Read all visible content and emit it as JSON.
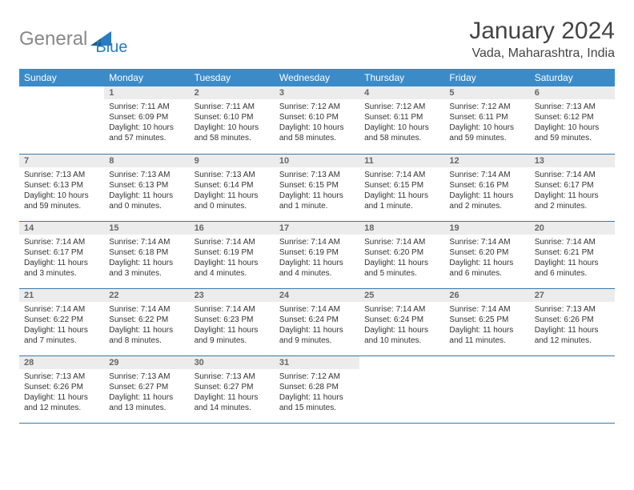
{
  "colors": {
    "header_bg": "#3b8bc9",
    "divider": "#3b77a8",
    "daynum_bg": "#ececec",
    "logo_blue": "#2b7bbf",
    "logo_gray": "#888888"
  },
  "logo": {
    "part1": "General",
    "part2": "Blue"
  },
  "title": "January 2024",
  "location": "Vada, Maharashtra, India",
  "weekdays": [
    "Sunday",
    "Monday",
    "Tuesday",
    "Wednesday",
    "Thursday",
    "Friday",
    "Saturday"
  ],
  "weeks": [
    [
      {
        "n": "",
        "sunrise": "",
        "sunset": "",
        "daylight": ""
      },
      {
        "n": "1",
        "sunrise": "Sunrise: 7:11 AM",
        "sunset": "Sunset: 6:09 PM",
        "daylight": "Daylight: 10 hours and 57 minutes."
      },
      {
        "n": "2",
        "sunrise": "Sunrise: 7:11 AM",
        "sunset": "Sunset: 6:10 PM",
        "daylight": "Daylight: 10 hours and 58 minutes."
      },
      {
        "n": "3",
        "sunrise": "Sunrise: 7:12 AM",
        "sunset": "Sunset: 6:10 PM",
        "daylight": "Daylight: 10 hours and 58 minutes."
      },
      {
        "n": "4",
        "sunrise": "Sunrise: 7:12 AM",
        "sunset": "Sunset: 6:11 PM",
        "daylight": "Daylight: 10 hours and 58 minutes."
      },
      {
        "n": "5",
        "sunrise": "Sunrise: 7:12 AM",
        "sunset": "Sunset: 6:11 PM",
        "daylight": "Daylight: 10 hours and 59 minutes."
      },
      {
        "n": "6",
        "sunrise": "Sunrise: 7:13 AM",
        "sunset": "Sunset: 6:12 PM",
        "daylight": "Daylight: 10 hours and 59 minutes."
      }
    ],
    [
      {
        "n": "7",
        "sunrise": "Sunrise: 7:13 AM",
        "sunset": "Sunset: 6:13 PM",
        "daylight": "Daylight: 10 hours and 59 minutes."
      },
      {
        "n": "8",
        "sunrise": "Sunrise: 7:13 AM",
        "sunset": "Sunset: 6:13 PM",
        "daylight": "Daylight: 11 hours and 0 minutes."
      },
      {
        "n": "9",
        "sunrise": "Sunrise: 7:13 AM",
        "sunset": "Sunset: 6:14 PM",
        "daylight": "Daylight: 11 hours and 0 minutes."
      },
      {
        "n": "10",
        "sunrise": "Sunrise: 7:13 AM",
        "sunset": "Sunset: 6:15 PM",
        "daylight": "Daylight: 11 hours and 1 minute."
      },
      {
        "n": "11",
        "sunrise": "Sunrise: 7:14 AM",
        "sunset": "Sunset: 6:15 PM",
        "daylight": "Daylight: 11 hours and 1 minute."
      },
      {
        "n": "12",
        "sunrise": "Sunrise: 7:14 AM",
        "sunset": "Sunset: 6:16 PM",
        "daylight": "Daylight: 11 hours and 2 minutes."
      },
      {
        "n": "13",
        "sunrise": "Sunrise: 7:14 AM",
        "sunset": "Sunset: 6:17 PM",
        "daylight": "Daylight: 11 hours and 2 minutes."
      }
    ],
    [
      {
        "n": "14",
        "sunrise": "Sunrise: 7:14 AM",
        "sunset": "Sunset: 6:17 PM",
        "daylight": "Daylight: 11 hours and 3 minutes."
      },
      {
        "n": "15",
        "sunrise": "Sunrise: 7:14 AM",
        "sunset": "Sunset: 6:18 PM",
        "daylight": "Daylight: 11 hours and 3 minutes."
      },
      {
        "n": "16",
        "sunrise": "Sunrise: 7:14 AM",
        "sunset": "Sunset: 6:19 PM",
        "daylight": "Daylight: 11 hours and 4 minutes."
      },
      {
        "n": "17",
        "sunrise": "Sunrise: 7:14 AM",
        "sunset": "Sunset: 6:19 PM",
        "daylight": "Daylight: 11 hours and 4 minutes."
      },
      {
        "n": "18",
        "sunrise": "Sunrise: 7:14 AM",
        "sunset": "Sunset: 6:20 PM",
        "daylight": "Daylight: 11 hours and 5 minutes."
      },
      {
        "n": "19",
        "sunrise": "Sunrise: 7:14 AM",
        "sunset": "Sunset: 6:20 PM",
        "daylight": "Daylight: 11 hours and 6 minutes."
      },
      {
        "n": "20",
        "sunrise": "Sunrise: 7:14 AM",
        "sunset": "Sunset: 6:21 PM",
        "daylight": "Daylight: 11 hours and 6 minutes."
      }
    ],
    [
      {
        "n": "21",
        "sunrise": "Sunrise: 7:14 AM",
        "sunset": "Sunset: 6:22 PM",
        "daylight": "Daylight: 11 hours and 7 minutes."
      },
      {
        "n": "22",
        "sunrise": "Sunrise: 7:14 AM",
        "sunset": "Sunset: 6:22 PM",
        "daylight": "Daylight: 11 hours and 8 minutes."
      },
      {
        "n": "23",
        "sunrise": "Sunrise: 7:14 AM",
        "sunset": "Sunset: 6:23 PM",
        "daylight": "Daylight: 11 hours and 9 minutes."
      },
      {
        "n": "24",
        "sunrise": "Sunrise: 7:14 AM",
        "sunset": "Sunset: 6:24 PM",
        "daylight": "Daylight: 11 hours and 9 minutes."
      },
      {
        "n": "25",
        "sunrise": "Sunrise: 7:14 AM",
        "sunset": "Sunset: 6:24 PM",
        "daylight": "Daylight: 11 hours and 10 minutes."
      },
      {
        "n": "26",
        "sunrise": "Sunrise: 7:14 AM",
        "sunset": "Sunset: 6:25 PM",
        "daylight": "Daylight: 11 hours and 11 minutes."
      },
      {
        "n": "27",
        "sunrise": "Sunrise: 7:13 AM",
        "sunset": "Sunset: 6:26 PM",
        "daylight": "Daylight: 11 hours and 12 minutes."
      }
    ],
    [
      {
        "n": "28",
        "sunrise": "Sunrise: 7:13 AM",
        "sunset": "Sunset: 6:26 PM",
        "daylight": "Daylight: 11 hours and 12 minutes."
      },
      {
        "n": "29",
        "sunrise": "Sunrise: 7:13 AM",
        "sunset": "Sunset: 6:27 PM",
        "daylight": "Daylight: 11 hours and 13 minutes."
      },
      {
        "n": "30",
        "sunrise": "Sunrise: 7:13 AM",
        "sunset": "Sunset: 6:27 PM",
        "daylight": "Daylight: 11 hours and 14 minutes."
      },
      {
        "n": "31",
        "sunrise": "Sunrise: 7:12 AM",
        "sunset": "Sunset: 6:28 PM",
        "daylight": "Daylight: 11 hours and 15 minutes."
      },
      {
        "n": "",
        "sunrise": "",
        "sunset": "",
        "daylight": ""
      },
      {
        "n": "",
        "sunrise": "",
        "sunset": "",
        "daylight": ""
      },
      {
        "n": "",
        "sunrise": "",
        "sunset": "",
        "daylight": ""
      }
    ]
  ]
}
